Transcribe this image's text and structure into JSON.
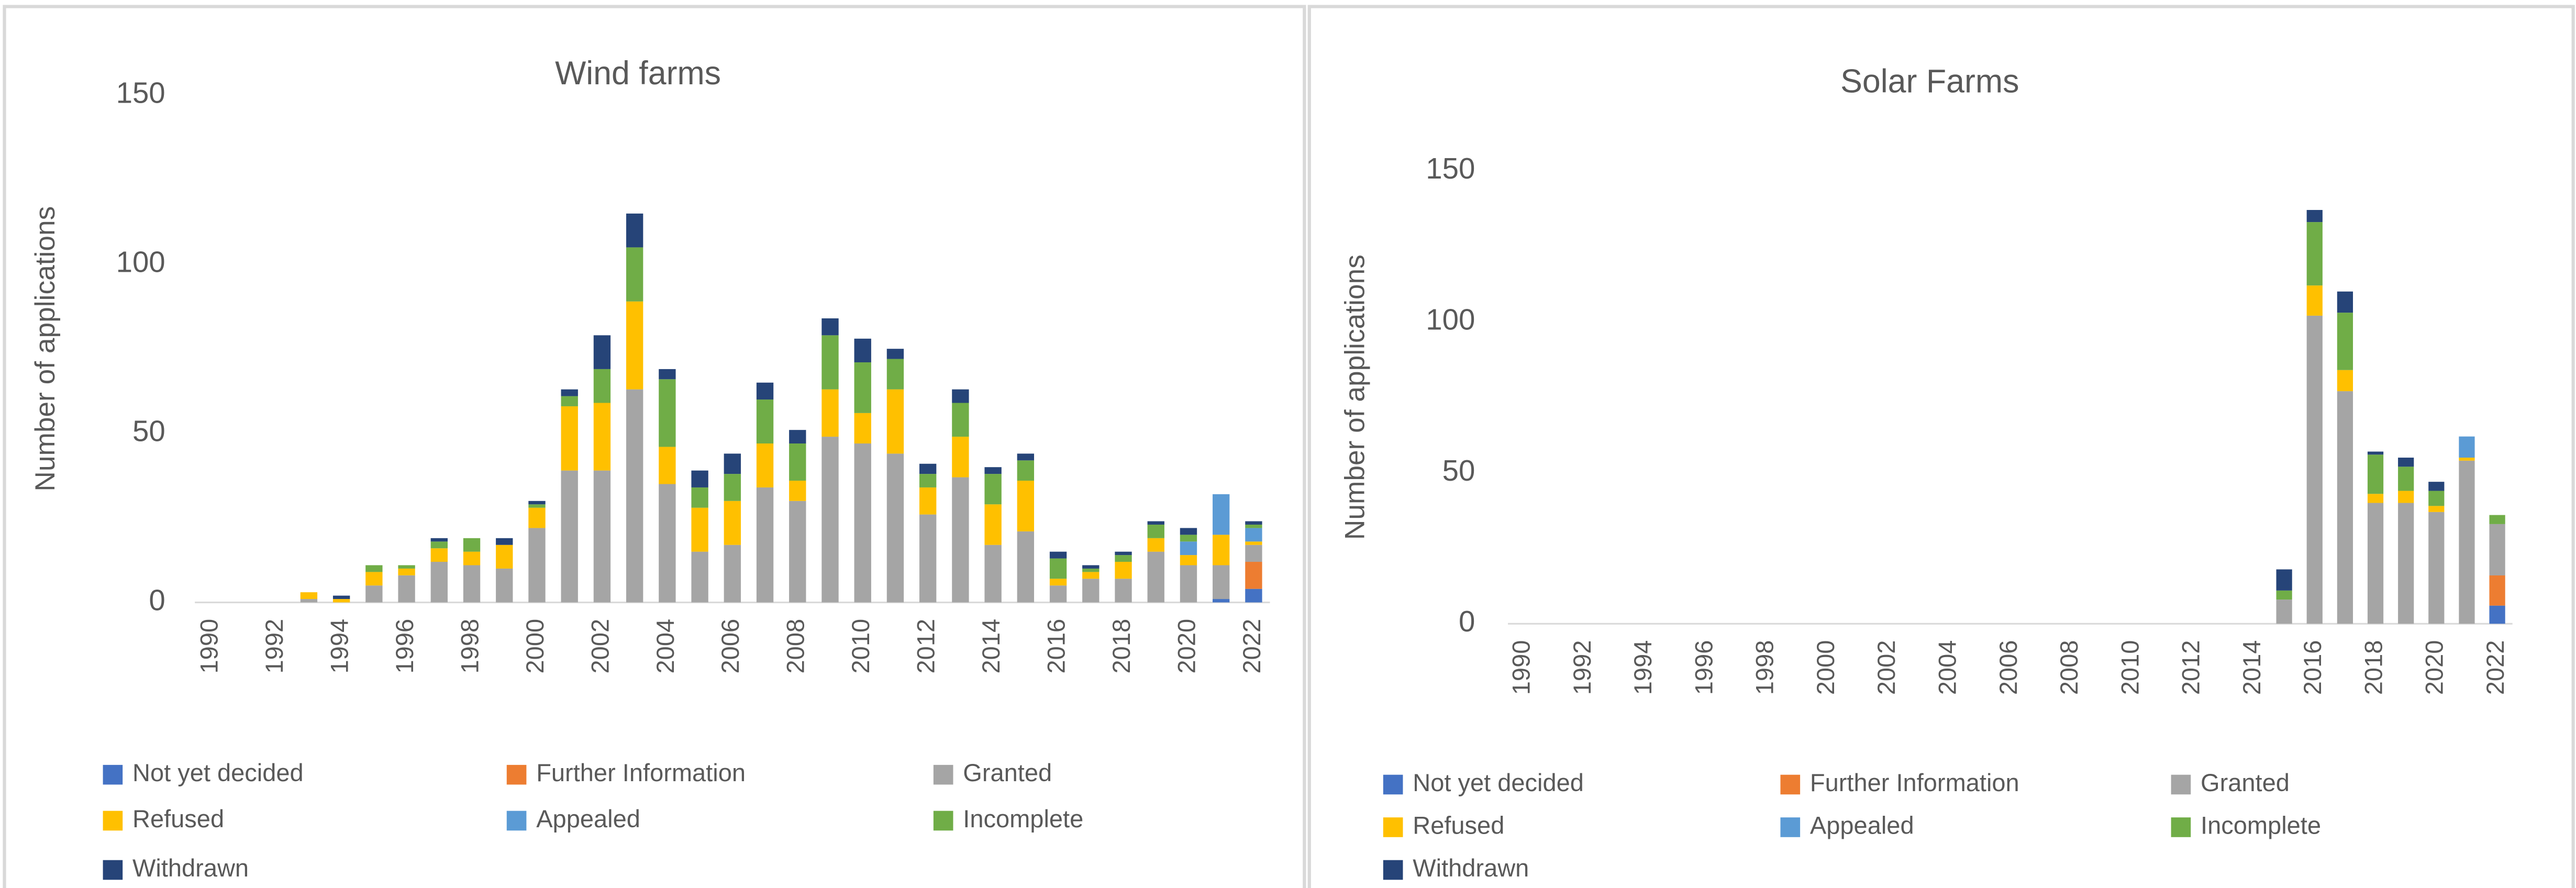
{
  "chart_data": [
    {
      "type": "stacked_bar",
      "title": "Wind farms",
      "y_label": "Number of applications",
      "categories": [
        "1990",
        null,
        "1992",
        null,
        "1994",
        null,
        "1996",
        null,
        "1998",
        null,
        "2000",
        null,
        "2002",
        null,
        "2004",
        null,
        "2006",
        null,
        "2008",
        null,
        "2010",
        null,
        "2012",
        null,
        "2014",
        null,
        "2016",
        null,
        "2018",
        null,
        "2020",
        null,
        "2022"
      ],
      "ylim": [
        0,
        150
      ],
      "yticks": [
        0,
        50,
        100,
        150
      ],
      "grid": false,
      "series": [
        {
          "name": "Not yet decided",
          "color": "#4472c4",
          "values": [
            0,
            0,
            0,
            0,
            0,
            0,
            0,
            0,
            0,
            0,
            0,
            0,
            0,
            0,
            0,
            0,
            0,
            0,
            0,
            0,
            0,
            0,
            0,
            0,
            0,
            0,
            0,
            0,
            0,
            0,
            0,
            1,
            4
          ]
        },
        {
          "name": "Further Information",
          "color": "#ed7d31",
          "values": [
            0,
            0,
            0,
            0,
            0,
            0,
            0,
            0,
            0,
            0,
            0,
            0,
            0,
            0,
            0,
            0,
            0,
            0,
            0,
            0,
            0,
            0,
            0,
            0,
            0,
            0,
            0,
            0,
            0,
            0,
            0,
            0,
            8
          ]
        },
        {
          "name": "Granted",
          "color": "#a5a5a5",
          "values": [
            0,
            0,
            0,
            1,
            0,
            5,
            8,
            12,
            11,
            10,
            22,
            39,
            39,
            63,
            35,
            15,
            17,
            34,
            30,
            49,
            47,
            44,
            26,
            37,
            17,
            21,
            5,
            7,
            7,
            15,
            11,
            10,
            5
          ]
        },
        {
          "name": "Refused",
          "color": "#ffc000",
          "values": [
            0,
            0,
            0,
            2,
            1,
            4,
            2,
            4,
            4,
            7,
            6,
            19,
            20,
            26,
            11,
            13,
            13,
            13,
            6,
            14,
            9,
            19,
            8,
            12,
            12,
            15,
            2,
            2,
            5,
            4,
            3,
            9,
            1
          ]
        },
        {
          "name": "Appealed",
          "color": "#5b9bd5",
          "values": [
            0,
            0,
            0,
            0,
            0,
            0,
            0,
            0,
            0,
            0,
            0,
            0,
            0,
            0,
            0,
            0,
            0,
            0,
            0,
            0,
            0,
            0,
            0,
            0,
            0,
            0,
            0,
            0,
            0,
            0,
            4,
            12,
            4
          ]
        },
        {
          "name": "Incomplete",
          "color": "#70ad47",
          "values": [
            0,
            0,
            0,
            0,
            0,
            2,
            1,
            2,
            4,
            0,
            1,
            3,
            10,
            16,
            20,
            6,
            8,
            13,
            11,
            16,
            15,
            9,
            4,
            10,
            9,
            6,
            6,
            1,
            2,
            4,
            2,
            0,
            1
          ]
        },
        {
          "name": "Withdrawn",
          "color": "#264478",
          "values": [
            0,
            0,
            0,
            0,
            1,
            0,
            0,
            1,
            0,
            2,
            1,
            2,
            10,
            10,
            3,
            5,
            6,
            5,
            4,
            5,
            7,
            3,
            3,
            4,
            2,
            2,
            2,
            1,
            1,
            1,
            2,
            0,
            1
          ]
        }
      ]
    },
    {
      "type": "stacked_bar",
      "title": "Solar Farms",
      "y_label": "Number of applications",
      "categories": [
        "1990",
        null,
        "1992",
        null,
        "1994",
        null,
        "1996",
        null,
        "1998",
        null,
        "2000",
        null,
        "2002",
        null,
        "2004",
        null,
        "2006",
        null,
        "2008",
        null,
        "2010",
        null,
        "2012",
        null,
        "2014",
        null,
        "2016",
        null,
        "2018",
        null,
        "2020",
        null,
        "2022"
      ],
      "ylim": [
        0,
        150
      ],
      "yticks": [
        0,
        50,
        100,
        150
      ],
      "grid": false,
      "series": [
        {
          "name": "Not yet decided",
          "color": "#4472c4",
          "values": [
            0,
            0,
            0,
            0,
            0,
            0,
            0,
            0,
            0,
            0,
            0,
            0,
            0,
            0,
            0,
            0,
            0,
            0,
            0,
            0,
            0,
            0,
            0,
            0,
            0,
            0,
            0,
            0,
            0,
            0,
            0,
            0,
            6
          ]
        },
        {
          "name": "Further Information",
          "color": "#ed7d31",
          "values": [
            0,
            0,
            0,
            0,
            0,
            0,
            0,
            0,
            0,
            0,
            0,
            0,
            0,
            0,
            0,
            0,
            0,
            0,
            0,
            0,
            0,
            0,
            0,
            0,
            0,
            0,
            0,
            0,
            0,
            0,
            0,
            0,
            10
          ]
        },
        {
          "name": "Granted",
          "color": "#a5a5a5",
          "values": [
            0,
            0,
            0,
            0,
            0,
            0,
            0,
            0,
            0,
            0,
            0,
            0,
            0,
            0,
            0,
            0,
            0,
            0,
            0,
            0,
            0,
            0,
            0,
            0,
            0,
            8,
            102,
            77,
            40,
            40,
            37,
            54,
            17
          ]
        },
        {
          "name": "Refused",
          "color": "#ffc000",
          "values": [
            0,
            0,
            0,
            0,
            0,
            0,
            0,
            0,
            0,
            0,
            0,
            0,
            0,
            0,
            0,
            0,
            0,
            0,
            0,
            0,
            0,
            0,
            0,
            0,
            0,
            0,
            10,
            7,
            3,
            4,
            2,
            1,
            0
          ]
        },
        {
          "name": "Appealed",
          "color": "#5b9bd5",
          "values": [
            0,
            0,
            0,
            0,
            0,
            0,
            0,
            0,
            0,
            0,
            0,
            0,
            0,
            0,
            0,
            0,
            0,
            0,
            0,
            0,
            0,
            0,
            0,
            0,
            0,
            0,
            0,
            0,
            0,
            0,
            0,
            7,
            0
          ]
        },
        {
          "name": "Incomplete",
          "color": "#70ad47",
          "values": [
            0,
            0,
            0,
            0,
            0,
            0,
            0,
            0,
            0,
            0,
            0,
            0,
            0,
            0,
            0,
            0,
            0,
            0,
            0,
            0,
            0,
            0,
            0,
            0,
            0,
            3,
            21,
            19,
            13,
            8,
            5,
            0,
            3
          ]
        },
        {
          "name": "Withdrawn",
          "color": "#264478",
          "values": [
            0,
            0,
            0,
            0,
            0,
            0,
            0,
            0,
            0,
            0,
            0,
            0,
            0,
            0,
            0,
            0,
            0,
            0,
            0,
            0,
            0,
            0,
            0,
            0,
            0,
            7,
            4,
            7,
            1,
            3,
            3,
            0,
            0
          ]
        }
      ]
    }
  ]
}
